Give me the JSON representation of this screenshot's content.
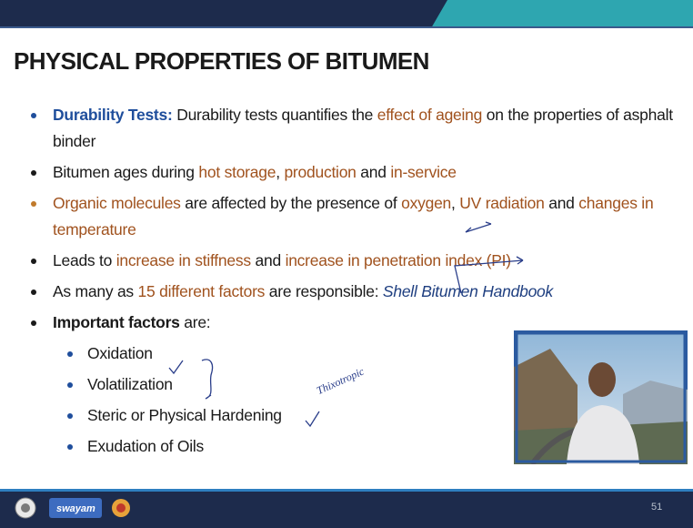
{
  "header": {
    "title": "PHYSICAL PROPERTIES OF BITUMEN"
  },
  "bullets": [
    {
      "level": 1,
      "bullet_color": "#1f4e9c",
      "segments": [
        {
          "text": "Durability Tests:",
          "style": "blue-bold"
        },
        {
          "text": " Durability tests quantifies the ",
          "style": "normal"
        },
        {
          "text": "effect of ageing",
          "style": "brown"
        },
        {
          "text": " on the properties of asphalt binder",
          "style": "normal"
        }
      ]
    },
    {
      "level": 1,
      "bullet_color": "#1a1a1a",
      "segments": [
        {
          "text": "Bitumen ages during ",
          "style": "normal"
        },
        {
          "text": "hot storage",
          "style": "brown"
        },
        {
          "text": ", ",
          "style": "normal"
        },
        {
          "text": "production",
          "style": "brown"
        },
        {
          "text": " and ",
          "style": "normal"
        },
        {
          "text": "in-service",
          "style": "brown"
        }
      ]
    },
    {
      "level": 1,
      "bullet_color": "#c07a2c",
      "segments": [
        {
          "text": "Organic molecules",
          "style": "brown"
        },
        {
          "text": " are affected by the presence of ",
          "style": "normal"
        },
        {
          "text": "oxygen",
          "style": "brown"
        },
        {
          "text": ", ",
          "style": "normal"
        },
        {
          "text": "UV radiation",
          "style": "brown"
        },
        {
          "text": " and ",
          "style": "normal"
        },
        {
          "text": "changes in temperature",
          "style": "brown"
        }
      ]
    },
    {
      "level": 1,
      "bullet_color": "#1a1a1a",
      "segments": [
        {
          "text": "Leads to ",
          "style": "normal"
        },
        {
          "text": "increase in stiffness",
          "style": "brown"
        },
        {
          "text": " and ",
          "style": "normal"
        },
        {
          "text": "increase in penetration index (PI)",
          "style": "brown"
        }
      ]
    },
    {
      "level": 1,
      "bullet_color": "#1a1a1a",
      "segments": [
        {
          "text": "As many as ",
          "style": "normal"
        },
        {
          "text": "15 different factors",
          "style": "brown"
        },
        {
          "text": " are responsible: ",
          "style": "normal"
        },
        {
          "text": "Shell Bitumen Handbook",
          "style": "italic-blue"
        }
      ]
    },
    {
      "level": 1,
      "bullet_color": "#1a1a1a",
      "segments": [
        {
          "text": "Important factors",
          "style": "bold"
        },
        {
          "text": " are:",
          "style": "normal"
        }
      ]
    },
    {
      "level": 2,
      "bullet_color": "#1f4e9c",
      "segments": [
        {
          "text": "Oxidation",
          "style": "normal"
        }
      ]
    },
    {
      "level": 2,
      "bullet_color": "#1f4e9c",
      "segments": [
        {
          "text": "Volatilization",
          "style": "normal"
        }
      ]
    },
    {
      "level": 2,
      "bullet_color": "#1f4e9c",
      "segments": [
        {
          "text": "Steric or Physical Hardening",
          "style": "normal"
        }
      ]
    },
    {
      "level": 2,
      "bullet_color": "#1f4e9c",
      "segments": [
        {
          "text": "Exudation of Oils",
          "style": "normal"
        }
      ]
    }
  ],
  "annotation": "Thixotropic",
  "footer": {
    "logo_text": "swayam",
    "page_number": "51"
  }
}
